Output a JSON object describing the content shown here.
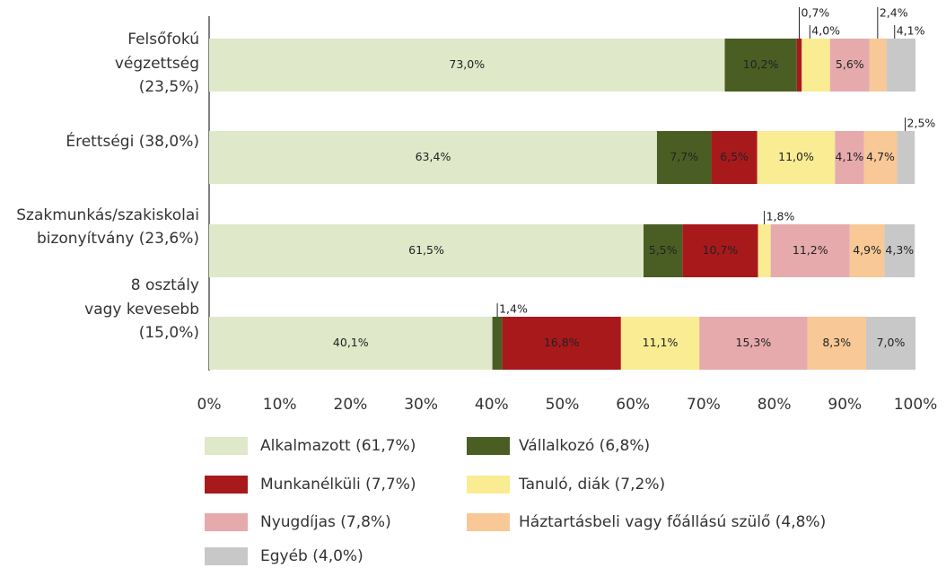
{
  "chart_data": {
    "type": "stacked_bar_horizontal",
    "categories": [
      [
        "Felsőfokú",
        "végzettség",
        "(23,5%)"
      ],
      [
        "Érettségi (38,0%)"
      ],
      [
        "Szakmunkás/szakiskolai",
        "bizonyítvány (23,6%)"
      ],
      [
        "8 osztály",
        "vagy kevesebb",
        "(15,0%)"
      ]
    ],
    "series": [
      {
        "name": "Alkalmazott (61,7%)",
        "color": "#dfe8c8",
        "values": [
          73.0,
          63.4,
          61.5,
          40.1
        ],
        "value_labels": [
          "73,0%",
          "63,4%",
          "61,5%",
          "40,1%"
        ]
      },
      {
        "name": "Vállalkozó (6,8%)",
        "color": "#4a5e23",
        "values": [
          10.2,
          7.7,
          5.5,
          1.4
        ],
        "value_labels": [
          "10,2%",
          "7,7%",
          "5,5%",
          "1,4%"
        ]
      },
      {
        "name": "Munkanélküli (7,7%)",
        "color": "#a8191c",
        "values": [
          0.7,
          6.5,
          10.7,
          16.8
        ],
        "value_labels": [
          "0,7%",
          "6,5%",
          "10,7%",
          "16,8%"
        ]
      },
      {
        "name": "Tanuló, diák (7,2%)",
        "color": "#f9ec92",
        "values": [
          4.0,
          11.0,
          1.8,
          11.1
        ],
        "value_labels": [
          "4,0%",
          "11,0%",
          "1,8%",
          "11,1%"
        ]
      },
      {
        "name": "Nyugdíjas (7,8%)",
        "color": "#e6aaac",
        "values": [
          5.6,
          4.1,
          11.2,
          15.3
        ],
        "value_labels": [
          "5,6%",
          "4,1%",
          "11,2%",
          "15,3%"
        ]
      },
      {
        "name": "Háztartásbeli vagy főállású szülő (4,8%)",
        "color": "#f8c896",
        "values": [
          2.4,
          4.7,
          4.9,
          8.3
        ],
        "value_labels": [
          "2,4%",
          "4,7%",
          "4,9%",
          "8,3%"
        ]
      },
      {
        "name": "Egyéb (4,0%)",
        "color": "#c8c8c8",
        "values": [
          4.1,
          2.5,
          4.3,
          7.0
        ],
        "value_labels": [
          "4,1%",
          "2,5%",
          "4,3%",
          "7,0%"
        ]
      }
    ],
    "xlim": [
      0,
      100
    ],
    "xticks": [
      {
        "value": 0,
        "label": "0%"
      },
      {
        "value": 10,
        "label": "10%"
      },
      {
        "value": 20,
        "label": "20%"
      },
      {
        "value": 30,
        "label": "30%"
      },
      {
        "value": 40,
        "label": "40%"
      },
      {
        "value": 50,
        "label": "50%"
      },
      {
        "value": 60,
        "label": "60%"
      },
      {
        "value": 70,
        "label": "70%"
      },
      {
        "value": 80,
        "label": "80%"
      },
      {
        "value": 90,
        "label": "90%"
      },
      {
        "value": 100,
        "label": "100%"
      }
    ],
    "legend": "bottom"
  }
}
